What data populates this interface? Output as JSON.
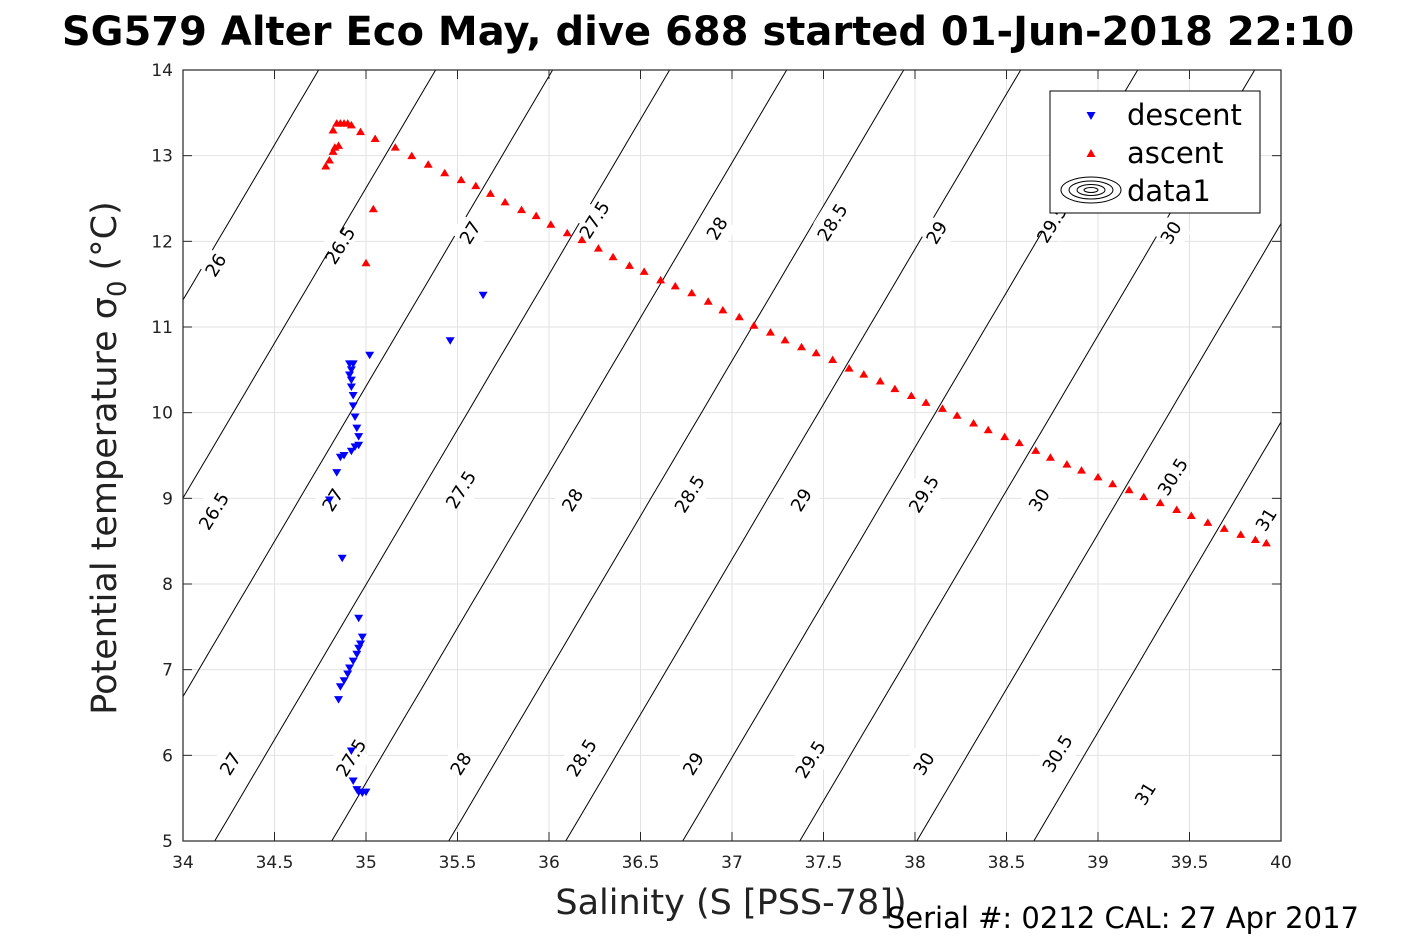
{
  "chart_data": {
    "type": "scatter",
    "title": "SG579 Alter Eco May, dive 688 started 01-Jun-2018 22:10",
    "xlabel": "Salinity (S [PSS-78])",
    "ylabel": "Potential temperature σ",
    "ylabel_sub": "0",
    "ylabel_unit": "(°C)",
    "footer": "Serial #: 0212  CAL: 27 Apr 2017",
    "xlim": [
      34,
      40
    ],
    "ylim": [
      5,
      14
    ],
    "xticks": [
      34,
      34.5,
      35,
      35.5,
      36,
      36.5,
      37,
      37.5,
      38,
      38.5,
      39,
      39.5,
      40
    ],
    "xtick_labels": [
      "34",
      "34.5",
      "35",
      "35.5",
      "36",
      "36.5",
      "37",
      "37.5",
      "38",
      "38.5",
      "39",
      "39.5",
      "40"
    ],
    "yticks": [
      5,
      6,
      7,
      8,
      9,
      10,
      11,
      12,
      13,
      14
    ],
    "ytick_labels": [
      "5",
      "6",
      "7",
      "8",
      "9",
      "10",
      "11",
      "12",
      "13",
      "14"
    ],
    "grid": true,
    "legend_position": "top-right",
    "contour_levels": [
      26,
      26.5,
      27,
      27.5,
      28,
      28.5,
      29,
      29.5,
      30,
      30.5,
      31
    ],
    "contour_labels": [
      {
        "text": "26",
        "x": 34.18,
        "y": 11.72
      },
      {
        "text": "26.5",
        "x": 34.86,
        "y": 11.95
      },
      {
        "text": "27",
        "x": 35.57,
        "y": 12.1
      },
      {
        "text": "27.5",
        "x": 36.25,
        "y": 12.25
      },
      {
        "text": "28",
        "x": 36.92,
        "y": 12.15
      },
      {
        "text": "28.5",
        "x": 37.55,
        "y": 12.22
      },
      {
        "text": "29",
        "x": 38.12,
        "y": 12.1
      },
      {
        "text": "29.5",
        "x": 38.75,
        "y": 12.2
      },
      {
        "text": "30",
        "x": 39.4,
        "y": 12.1
      },
      {
        "text": "26.5",
        "x": 34.17,
        "y": 8.85
      },
      {
        "text": "27",
        "x": 34.82,
        "y": 8.98
      },
      {
        "text": "27.5",
        "x": 35.52,
        "y": 9.1
      },
      {
        "text": "28",
        "x": 36.13,
        "y": 8.98
      },
      {
        "text": "28.5",
        "x": 36.77,
        "y": 9.05
      },
      {
        "text": "29",
        "x": 37.38,
        "y": 8.98
      },
      {
        "text": "29.5",
        "x": 38.05,
        "y": 9.05
      },
      {
        "text": "30",
        "x": 38.68,
        "y": 8.98
      },
      {
        "text": "30.5",
        "x": 39.41,
        "y": 9.25
      },
      {
        "text": "31",
        "x": 39.92,
        "y": 8.75
      },
      {
        "text": "27",
        "x": 34.26,
        "y": 5.9
      },
      {
        "text": "27.5",
        "x": 34.92,
        "y": 5.97
      },
      {
        "text": "28",
        "x": 35.52,
        "y": 5.9
      },
      {
        "text": "28.5",
        "x": 36.18,
        "y": 5.97
      },
      {
        "text": "29",
        "x": 36.79,
        "y": 5.9
      },
      {
        "text": "29.5",
        "x": 37.43,
        "y": 5.95
      },
      {
        "text": "30",
        "x": 38.05,
        "y": 5.9
      },
      {
        "text": "30.5",
        "x": 38.78,
        "y": 6.02
      },
      {
        "text": "31",
        "x": 39.26,
        "y": 5.55
      }
    ],
    "series": [
      {
        "name": "descent",
        "marker": "triangle-down",
        "color": "#0000ff",
        "points": [
          [
            35.02,
            10.67
          ],
          [
            34.93,
            10.57
          ],
          [
            34.91,
            10.57
          ],
          [
            34.92,
            10.5
          ],
          [
            34.91,
            10.44
          ],
          [
            34.92,
            10.38
          ],
          [
            34.92,
            10.3
          ],
          [
            34.93,
            10.2
          ],
          [
            34.93,
            10.08
          ],
          [
            34.94,
            9.95
          ],
          [
            34.95,
            9.82
          ],
          [
            34.96,
            9.72
          ],
          [
            34.96,
            9.62
          ],
          [
            34.94,
            9.6
          ],
          [
            34.92,
            9.55
          ],
          [
            34.88,
            9.5
          ],
          [
            34.86,
            9.48
          ],
          [
            34.84,
            9.3
          ],
          [
            34.8,
            8.98
          ],
          [
            34.87,
            8.3
          ],
          [
            34.96,
            7.6
          ],
          [
            34.98,
            7.38
          ],
          [
            34.97,
            7.3
          ],
          [
            34.96,
            7.25
          ],
          [
            34.95,
            7.18
          ],
          [
            34.93,
            7.1
          ],
          [
            34.91,
            7.02
          ],
          [
            34.9,
            6.95
          ],
          [
            34.88,
            6.87
          ],
          [
            34.86,
            6.8
          ],
          [
            34.85,
            6.65
          ],
          [
            34.92,
            6.05
          ],
          [
            34.93,
            5.7
          ],
          [
            34.95,
            5.6
          ],
          [
            34.96,
            5.57
          ],
          [
            34.98,
            5.56
          ],
          [
            35.0,
            5.57
          ],
          [
            35.46,
            10.84
          ],
          [
            35.64,
            11.37
          ]
        ]
      },
      {
        "name": "ascent",
        "marker": "triangle-up",
        "color": "#ff0000",
        "points": [
          [
            34.82,
            13.3
          ],
          [
            34.84,
            13.38
          ],
          [
            34.86,
            13.38
          ],
          [
            34.88,
            13.38
          ],
          [
            34.9,
            13.38
          ],
          [
            34.92,
            13.36
          ],
          [
            34.82,
            13.05
          ],
          [
            34.8,
            12.95
          ],
          [
            34.78,
            12.88
          ],
          [
            34.83,
            13.1
          ],
          [
            34.85,
            13.12
          ],
          [
            34.97,
            13.28
          ],
          [
            35.05,
            13.2
          ],
          [
            35.16,
            13.1
          ],
          [
            35.25,
            13.0
          ],
          [
            35.34,
            12.9
          ],
          [
            35.43,
            12.8
          ],
          [
            35.52,
            12.72
          ],
          [
            35.6,
            12.65
          ],
          [
            35.68,
            12.56
          ],
          [
            35.76,
            12.46
          ],
          [
            35.85,
            12.37
          ],
          [
            35.93,
            12.3
          ],
          [
            36.01,
            12.2
          ],
          [
            36.1,
            12.1
          ],
          [
            36.18,
            12.02
          ],
          [
            36.27,
            11.92
          ],
          [
            36.35,
            11.82
          ],
          [
            36.44,
            11.72
          ],
          [
            36.52,
            11.65
          ],
          [
            36.61,
            11.55
          ],
          [
            36.69,
            11.48
          ],
          [
            36.78,
            11.4
          ],
          [
            36.87,
            11.3
          ],
          [
            36.95,
            11.2
          ],
          [
            37.04,
            11.12
          ],
          [
            37.12,
            11.02
          ],
          [
            37.21,
            10.94
          ],
          [
            37.29,
            10.85
          ],
          [
            37.38,
            10.77
          ],
          [
            37.46,
            10.7
          ],
          [
            37.55,
            10.62
          ],
          [
            37.64,
            10.52
          ],
          [
            37.72,
            10.45
          ],
          [
            37.81,
            10.37
          ],
          [
            37.89,
            10.28
          ],
          [
            37.98,
            10.2
          ],
          [
            38.06,
            10.12
          ],
          [
            38.15,
            10.05
          ],
          [
            38.23,
            9.97
          ],
          [
            38.32,
            9.88
          ],
          [
            38.4,
            9.8
          ],
          [
            38.49,
            9.72
          ],
          [
            38.57,
            9.65
          ],
          [
            38.66,
            9.56
          ],
          [
            38.74,
            9.48
          ],
          [
            38.83,
            9.4
          ],
          [
            38.91,
            9.33
          ],
          [
            39.0,
            9.25
          ],
          [
            39.08,
            9.17
          ],
          [
            39.17,
            9.1
          ],
          [
            39.25,
            9.02
          ],
          [
            39.34,
            8.95
          ],
          [
            39.43,
            8.87
          ],
          [
            39.51,
            8.8
          ],
          [
            39.6,
            8.72
          ],
          [
            39.69,
            8.65
          ],
          [
            39.78,
            8.58
          ],
          [
            39.86,
            8.52
          ],
          [
            39.92,
            8.48
          ],
          [
            35.0,
            11.75
          ],
          [
            35.04,
            12.38
          ]
        ]
      }
    ],
    "legend": [
      {
        "label": "descent",
        "marker": "triangle-down",
        "color": "#0000ff"
      },
      {
        "label": "ascent",
        "marker": "triangle-up",
        "color": "#ff0000"
      },
      {
        "label": "data1",
        "marker": "contour-ellipses",
        "color": "#000000"
      }
    ]
  },
  "colors": {
    "descent": "#0000ff",
    "ascent": "#ff0000",
    "contour": "#000000",
    "grid": "#e2e2e2",
    "axis": "#262626"
  }
}
